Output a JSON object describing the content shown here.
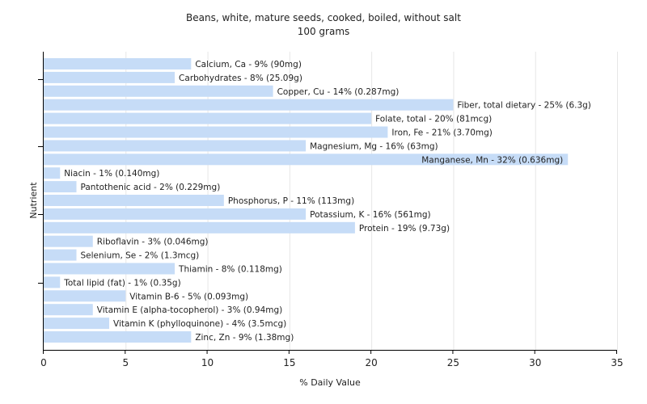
{
  "chart_data": {
    "type": "bar",
    "orientation": "horizontal",
    "title": "Beans, white, mature seeds, cooked, boiled, without salt",
    "subtitle": "100 grams",
    "xlabel": "% Daily Value",
    "ylabel": "Nutrient",
    "xlim": [
      0,
      35
    ],
    "xticks": [
      0,
      5,
      10,
      15,
      20,
      25,
      30,
      35
    ],
    "grid": true,
    "bar_color": "#c6dcf7",
    "categories": [
      "Calcium, Ca",
      "Carbohydrates",
      "Copper, Cu",
      "Fiber, total dietary",
      "Folate, total",
      "Iron, Fe",
      "Magnesium, Mg",
      "Manganese, Mn",
      "Niacin",
      "Pantothenic acid",
      "Phosphorus, P",
      "Potassium, K",
      "Protein",
      "Riboflavin",
      "Selenium, Se",
      "Thiamin",
      "Total lipid (fat)",
      "Vitamin B-6",
      "Vitamin E (alpha-tocopherol)",
      "Vitamin K (phylloquinone)",
      "Zinc, Zn"
    ],
    "values": [
      9,
      8,
      14,
      25,
      20,
      21,
      16,
      32,
      1,
      2,
      11,
      16,
      19,
      3,
      2,
      8,
      1,
      5,
      3,
      4,
      9
    ],
    "labels": [
      "Calcium, Ca - 9% (90mg)",
      "Carbohydrates - 8% (25.09g)",
      "Copper, Cu - 14% (0.287mg)",
      "Fiber, total dietary - 25% (6.3g)",
      "Folate, total - 20% (81mcg)",
      "Iron, Fe - 21% (3.70mg)",
      "Magnesium, Mg - 16% (63mg)",
      "Manganese, Mn - 32% (0.636mg)",
      "Niacin - 1% (0.140mg)",
      "Pantothenic acid - 2% (0.229mg)",
      "Phosphorus, P - 11% (113mg)",
      "Potassium, K - 16% (561mg)",
      "Protein - 19% (9.73g)",
      "Riboflavin - 3% (0.046mg)",
      "Selenium, Se - 2% (1.3mcg)",
      "Thiamin - 8% (0.118mg)",
      "Total lipid (fat) - 1% (0.35g)",
      "Vitamin B-6 - 5% (0.093mg)",
      "Vitamin E (alpha-tocopherol) - 3% (0.94mg)",
      "Vitamin K (phylloquinone) - 4% (3.5mcg)",
      "Zinc, Zn - 9% (1.38mg)"
    ]
  }
}
